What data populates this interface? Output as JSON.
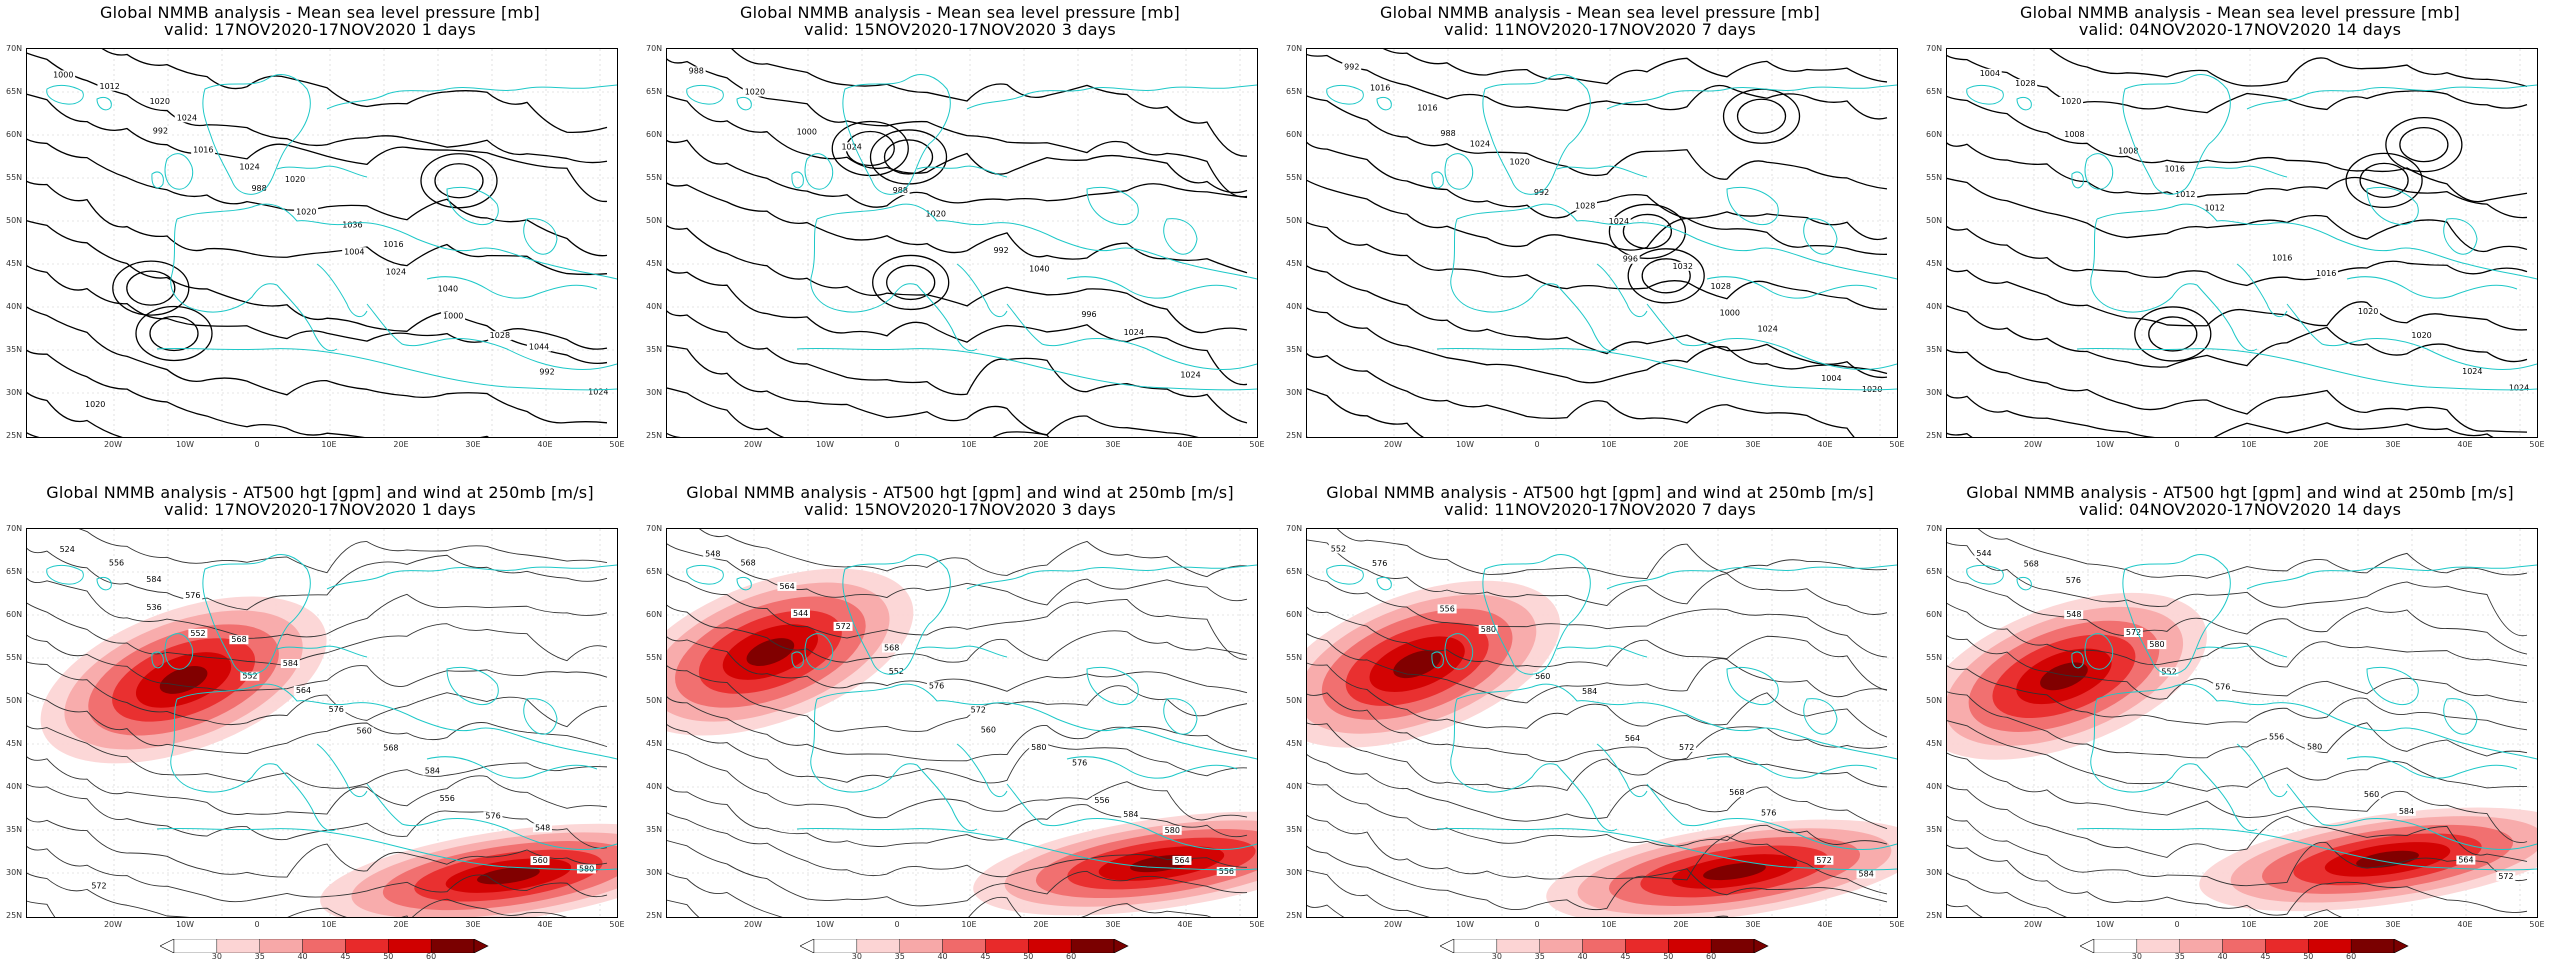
{
  "panels": [
    {
      "title": "Global NMMB analysis - Mean sea level pressure [mb]",
      "valid": "valid: 17NOV2020-17NOV2020   1 days",
      "type": "mslp",
      "contour_labels": [
        "1000",
        "992",
        "988",
        "1004",
        "1000",
        "992",
        "1012",
        "1016",
        "1020",
        "1024",
        "1028",
        "1024",
        "1020",
        "1024",
        "1036",
        "1040",
        "1044",
        "1020",
        "1024",
        "1020",
        "1016"
      ]
    },
    {
      "title": "Global NMMB analysis - Mean sea level pressure [mb]",
      "valid": "valid: 15NOV2020-17NOV2020   3 days",
      "type": "mslp",
      "contour_labels": [
        "988",
        "1000",
        "988",
        "992",
        "996",
        "1024",
        "1020",
        "1024",
        "1020",
        "1040",
        "1024"
      ]
    },
    {
      "title": "Global NMMB analysis - Mean sea level pressure [mb]",
      "valid": "valid: 11NOV2020-17NOV2020   7 days",
      "type": "mslp",
      "contour_labels": [
        "992",
        "988",
        "992",
        "996",
        "1000",
        "1004",
        "1016",
        "1024",
        "1028",
        "1032",
        "1024",
        "1020",
        "1016",
        "1020",
        "1024",
        "1028"
      ]
    },
    {
      "title": "Global NMMB analysis - Mean sea level pressure [mb]",
      "valid": "valid: 04NOV2020-17NOV2020   14 days",
      "type": "mslp",
      "contour_labels": [
        "1004",
        "1008",
        "1012",
        "1016",
        "1020",
        "1024",
        "1028",
        "1008",
        "1012",
        "1016",
        "1020",
        "1024",
        "1020",
        "1016"
      ]
    },
    {
      "title": "Global NMMB analysis - AT500 hgt [gpm] and wind at 250mb [m/s]",
      "valid": "valid: 17NOV2020-17NOV2020   1 days",
      "type": "z500",
      "contour_labels": [
        "524",
        "536",
        "552",
        "560",
        "556",
        "560",
        "556",
        "552",
        "564",
        "568",
        "576",
        "580",
        "584",
        "568",
        "576",
        "584",
        "548",
        "572",
        "576",
        "584"
      ]
    },
    {
      "title": "Global NMMB analysis - AT500 hgt [gpm] and wind at 250mb [m/s]",
      "valid": "valid: 15NOV2020-17NOV2020   3 days",
      "type": "z500",
      "contour_labels": [
        "548",
        "544",
        "552",
        "560",
        "556",
        "564",
        "568",
        "572",
        "576",
        "580",
        "584",
        "556",
        "564",
        "568",
        "572",
        "576",
        "580"
      ]
    },
    {
      "title": "Global NMMB analysis - AT500 hgt [gpm] and wind at 250mb [m/s]",
      "valid": "valid: 11NOV2020-17NOV2020   7 days",
      "type": "z500",
      "contour_labels": [
        "552",
        "556",
        "560",
        "564",
        "568",
        "572",
        "576",
        "580",
        "584",
        "572",
        "576",
        "584"
      ]
    },
    {
      "title": "Global NMMB analysis - AT500 hgt [gpm] and wind at 250mb [m/s]",
      "valid": "valid: 04NOV2020-17NOV2020   14 days",
      "type": "z500",
      "contour_labels": [
        "544",
        "548",
        "552",
        "556",
        "560",
        "564",
        "568",
        "572",
        "576",
        "580",
        "584",
        "572",
        "576",
        "580"
      ]
    }
  ],
  "lat_labels": [
    "70N",
    "65N",
    "60N",
    "55N",
    "50N",
    "45N",
    "40N",
    "35N",
    "30N",
    "25N"
  ],
  "lon_labels": [
    "20W",
    "10W",
    "0",
    "10E",
    "20E",
    "30E",
    "40E",
    "50E"
  ],
  "colorbar": {
    "labels": [
      "30",
      "35",
      "40",
      "45",
      "50",
      "60"
    ],
    "colors": [
      "#ffffff",
      "#fcd4d4",
      "#f7a8a8",
      "#f06a6a",
      "#e82a2a",
      "#d00000",
      "#7a0000"
    ]
  },
  "colors": {
    "coast": "#1ec8c8",
    "contour": "#000000",
    "grid": "#cccccc"
  }
}
